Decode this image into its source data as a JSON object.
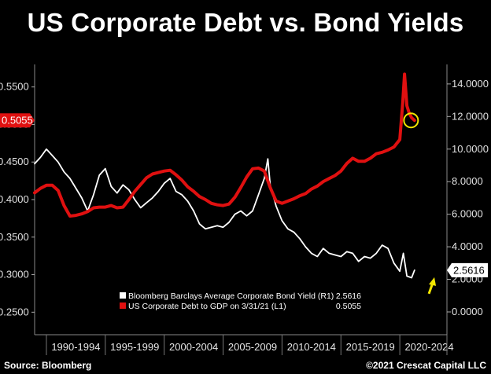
{
  "chart_data": {
    "type": "line",
    "title": "US Corporate Debt vs. Bond Yields",
    "x_period_labels": [
      "1990-1994",
      "1995-1999",
      "2000-2004",
      "2005-2009",
      "2010-2014",
      "2015-2019",
      "2020-2024"
    ],
    "left_axis": {
      "ylim": [
        0.22,
        0.58
      ],
      "ticks": [
        "0.2500",
        "0.3000",
        "0.3500",
        "0.4000",
        "0.4500",
        "0.5000",
        "0.5500"
      ]
    },
    "right_axis": {
      "ylim": [
        -1.4,
        15.2
      ],
      "ticks": [
        "0.0000",
        "2.0000",
        "4.0000",
        "6.0000",
        "8.0000",
        "10.0000",
        "12.0000",
        "14.0000"
      ]
    },
    "series": [
      {
        "name": "Bloomberg Barclays Average Corporate Bond Yield (R1)",
        "last_value": "2.5616",
        "color": "#ffffff",
        "axis": "right",
        "x": [
          1989.0,
          1989.5,
          1990.0,
          1990.5,
          1991.0,
          1991.5,
          1992.0,
          1992.5,
          1993.0,
          1993.5,
          1994.0,
          1994.5,
          1995.0,
          1995.5,
          1996.0,
          1996.5,
          1997.0,
          1997.5,
          1998.0,
          1998.5,
          1999.0,
          1999.5,
          2000.0,
          2000.5,
          2001.0,
          2001.5,
          2002.0,
          2002.5,
          2003.0,
          2003.5,
          2004.0,
          2004.5,
          2005.0,
          2005.5,
          2006.0,
          2006.5,
          2007.0,
          2007.5,
          2008.0,
          2008.5,
          2008.8,
          2009.0,
          2009.5,
          2010.0,
          2010.5,
          2011.0,
          2011.5,
          2012.0,
          2012.5,
          2013.0,
          2013.5,
          2014.0,
          2014.5,
          2015.0,
          2015.5,
          2016.0,
          2016.5,
          2017.0,
          2017.5,
          2018.0,
          2018.5,
          2019.0,
          2019.5,
          2020.0,
          2020.3,
          2020.6,
          2021.0,
          2021.25
        ],
        "y": [
          9.1,
          9.5,
          10.0,
          9.6,
          9.2,
          8.6,
          8.2,
          7.6,
          7.0,
          6.2,
          7.2,
          8.4,
          8.8,
          7.7,
          7.3,
          7.8,
          7.5,
          6.9,
          6.4,
          6.7,
          7.0,
          7.4,
          7.9,
          8.2,
          7.4,
          7.2,
          6.8,
          6.2,
          5.4,
          5.1,
          5.2,
          5.3,
          5.2,
          5.5,
          6.0,
          6.2,
          5.9,
          6.2,
          7.2,
          8.2,
          9.4,
          7.8,
          6.5,
          5.6,
          5.1,
          4.9,
          4.5,
          4.0,
          3.6,
          3.4,
          3.9,
          3.6,
          3.5,
          3.4,
          3.7,
          3.6,
          3.1,
          3.4,
          3.3,
          3.6,
          4.1,
          3.9,
          3.0,
          2.5,
          3.6,
          2.2,
          2.1,
          2.56
        ]
      },
      {
        "name": "US Corporate Debt to GDP on 3/31/21 (L1)",
        "last_value": "0.5055",
        "color": "#e01010",
        "axis": "left",
        "x": [
          1989.0,
          1989.5,
          1990.0,
          1990.5,
          1991.0,
          1991.5,
          1992.0,
          1992.5,
          1993.0,
          1993.5,
          1994.0,
          1994.5,
          1995.0,
          1995.5,
          1996.0,
          1996.5,
          1997.0,
          1997.5,
          1998.0,
          1998.5,
          1999.0,
          1999.5,
          2000.0,
          2000.5,
          2001.0,
          2001.5,
          2002.0,
          2002.5,
          2003.0,
          2003.5,
          2004.0,
          2004.5,
          2005.0,
          2005.5,
          2006.0,
          2006.5,
          2007.0,
          2007.5,
          2008.0,
          2008.5,
          2009.0,
          2009.5,
          2010.0,
          2010.5,
          2011.0,
          2011.5,
          2012.0,
          2012.5,
          2013.0,
          2013.5,
          2014.0,
          2014.5,
          2015.0,
          2015.5,
          2016.0,
          2016.5,
          2017.0,
          2017.5,
          2018.0,
          2018.5,
          2019.0,
          2019.5,
          2020.0,
          2020.25,
          2020.4,
          2020.6,
          2020.8,
          2021.0,
          2021.25
        ],
        "y": [
          0.409,
          0.415,
          0.419,
          0.419,
          0.412,
          0.392,
          0.378,
          0.379,
          0.381,
          0.384,
          0.389,
          0.39,
          0.39,
          0.392,
          0.389,
          0.39,
          0.4,
          0.411,
          0.42,
          0.429,
          0.434,
          0.436,
          0.438,
          0.439,
          0.433,
          0.426,
          0.417,
          0.411,
          0.404,
          0.4,
          0.395,
          0.393,
          0.392,
          0.394,
          0.403,
          0.416,
          0.43,
          0.441,
          0.442,
          0.438,
          0.416,
          0.398,
          0.395,
          0.398,
          0.401,
          0.405,
          0.408,
          0.414,
          0.418,
          0.424,
          0.428,
          0.432,
          0.438,
          0.448,
          0.455,
          0.451,
          0.451,
          0.455,
          0.461,
          0.463,
          0.466,
          0.47,
          0.48,
          0.53,
          0.567,
          0.525,
          0.515,
          0.509,
          0.5055
        ]
      }
    ],
    "left_marker_label": "0.5055",
    "right_marker_label": "2.5616"
  },
  "footer": {
    "source": "Source: Bloomberg",
    "copyright": "©2021 Crescat Capital LLC"
  }
}
